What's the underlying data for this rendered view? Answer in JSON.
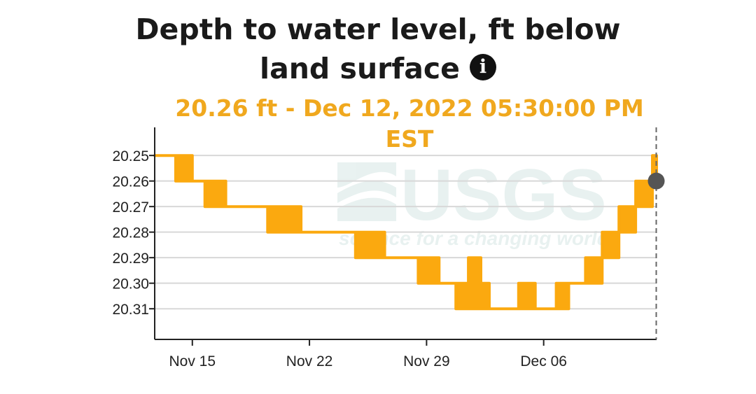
{
  "title": "Depth to water level, ft below land surface",
  "info_icon": "info-icon",
  "readout": "20.26 ft - Dec 12, 2022 05:30:00 PM EST",
  "watermark": {
    "logo": "USGS",
    "tagline": "science for a changing world"
  },
  "colors": {
    "series": "#fba90f",
    "marker": "#555555",
    "grid": "#d8d8d8",
    "axis": "#222222",
    "readout": "#f0a81e"
  },
  "chart_data": {
    "type": "area",
    "xlabel": "",
    "ylabel": "",
    "x_tick_labels": [
      "Nov 15",
      "Nov 22",
      "Nov 29",
      "Dec 06"
    ],
    "x_tick_dates": [
      "2022-11-15",
      "2022-11-22",
      "2022-11-29",
      "2022-12-06"
    ],
    "xlim": [
      "2022-11-12T18:00",
      "2022-12-12T18:00"
    ],
    "y_tick_labels": [
      "20.25",
      "20.26",
      "20.27",
      "20.28",
      "20.29",
      "20.30",
      "20.31"
    ],
    "y_ticks": [
      20.25,
      20.26,
      20.27,
      20.28,
      20.29,
      20.3,
      20.31
    ],
    "ylim": [
      20.322,
      20.239
    ],
    "y_inverted": true,
    "grid": true,
    "series": [
      {
        "band": [
          {
            "x": "2022-11-12T18:00",
            "lo": 20.25,
            "hi": 20.25
          },
          {
            "x": "2022-11-14T00:00",
            "lo": 20.25,
            "hi": 20.26
          },
          {
            "x": "2022-11-14T12:00",
            "lo": 20.25,
            "hi": 20.26
          },
          {
            "x": "2022-11-15T00:00",
            "lo": 20.26,
            "hi": 20.26
          },
          {
            "x": "2022-11-15T18:00",
            "lo": 20.26,
            "hi": 20.27
          },
          {
            "x": "2022-11-16T12:00",
            "lo": 20.26,
            "hi": 20.27
          },
          {
            "x": "2022-11-17T00:00",
            "lo": 20.27,
            "hi": 20.27
          },
          {
            "x": "2022-11-19T12:00",
            "lo": 20.27,
            "hi": 20.28
          },
          {
            "x": "2022-11-21T00:00",
            "lo": 20.27,
            "hi": 20.28
          },
          {
            "x": "2022-11-21T12:00",
            "lo": 20.28,
            "hi": 20.28
          },
          {
            "x": "2022-11-24T12:00",
            "lo": 20.28,
            "hi": 20.28
          },
          {
            "x": "2022-11-24T18:00",
            "lo": 20.28,
            "hi": 20.29
          },
          {
            "x": "2022-11-25T12:00",
            "lo": 20.28,
            "hi": 20.29
          },
          {
            "x": "2022-11-26T00:00",
            "lo": 20.28,
            "hi": 20.29
          },
          {
            "x": "2022-11-26T12:00",
            "lo": 20.29,
            "hi": 20.29
          },
          {
            "x": "2022-11-28T12:00",
            "lo": 20.29,
            "hi": 20.3
          },
          {
            "x": "2022-11-29T18:00",
            "lo": 20.3,
            "hi": 20.3
          },
          {
            "x": "2022-11-30T18:00",
            "lo": 20.3,
            "hi": 20.31
          },
          {
            "x": "2022-12-01T12:00",
            "lo": 20.29,
            "hi": 20.31
          },
          {
            "x": "2022-12-02T06:00",
            "lo": 20.3,
            "hi": 20.31
          },
          {
            "x": "2022-12-02T18:00",
            "lo": 20.31,
            "hi": 20.31
          },
          {
            "x": "2022-12-04T12:00",
            "lo": 20.3,
            "hi": 20.31
          },
          {
            "x": "2022-12-05T12:00",
            "lo": 20.31,
            "hi": 20.31
          },
          {
            "x": "2022-12-06T18:00",
            "lo": 20.3,
            "hi": 20.31
          },
          {
            "x": "2022-12-07T12:00",
            "lo": 20.3,
            "hi": 20.3
          },
          {
            "x": "2022-12-08T12:00",
            "lo": 20.29,
            "hi": 20.3
          },
          {
            "x": "2022-12-09T12:00",
            "lo": 20.28,
            "hi": 20.29
          },
          {
            "x": "2022-12-10T12:00",
            "lo": 20.27,
            "hi": 20.28
          },
          {
            "x": "2022-12-11T12:00",
            "lo": 20.26,
            "hi": 20.27
          },
          {
            "x": "2022-12-12T12:00",
            "lo": 20.25,
            "hi": 20.26
          },
          {
            "x": "2022-12-12T18:00",
            "lo": 20.26,
            "hi": 20.26
          }
        ]
      }
    ],
    "highlight_point": {
      "x": "2022-12-12T17:30",
      "y": 20.26
    }
  }
}
